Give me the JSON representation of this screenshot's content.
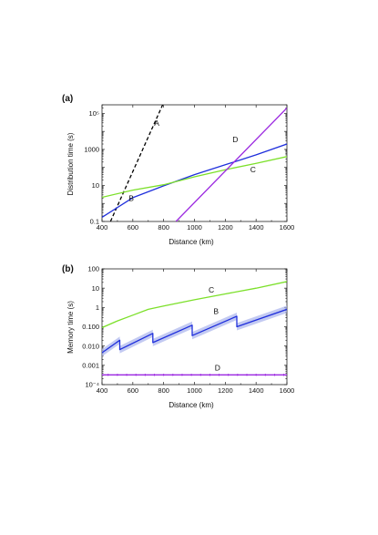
{
  "chart_data": [
    {
      "panel": "(a)",
      "type": "line",
      "xlabel": "Distance (km)",
      "ylabel": "Distribution time (s)",
      "xlim": [
        400,
        1600
      ],
      "ylim": [
        0.1,
        300000
      ],
      "yscale": "log",
      "xticks": [
        400,
        600,
        800,
        1000,
        1200,
        1400,
        1600
      ],
      "yticks": [
        {
          "value": 0.1,
          "label": "0.1"
        },
        {
          "value": 10,
          "label": "10"
        },
        {
          "value": 1000,
          "label": "1000"
        },
        {
          "value": 100000,
          "label": "10⁵"
        }
      ],
      "series": [
        {
          "name": "A",
          "color": "#000000",
          "dashed": true,
          "x": [
            455,
            800
          ],
          "y": [
            0.1,
            400000
          ],
          "label_at": {
            "x": 755,
            "y": 20000
          }
        },
        {
          "name": "B",
          "color": "#1f2fdc",
          "x": [
            400,
            600,
            800,
            1000,
            1200,
            1400,
            1600
          ],
          "y": [
            0.17,
            2.1,
            9.5,
            40,
            140,
            500,
            2000
          ],
          "label_at": {
            "x": 590,
            "y": 1.4
          }
        },
        {
          "name": "C",
          "color": "#7ce02a",
          "x": [
            400,
            600,
            800,
            1000,
            1200,
            1400,
            1600
          ],
          "y": [
            2.2,
            5.5,
            11,
            30,
            75,
            170,
            400
          ],
          "label_at": {
            "x": 1380,
            "y": 55
          }
        },
        {
          "name": "D",
          "color": "#9b28e0",
          "x": [
            880,
            1600
          ],
          "y": [
            0.1,
            200000
          ],
          "label_at": {
            "x": 1265,
            "y": 2500
          }
        }
      ]
    },
    {
      "panel": "(b)",
      "type": "line",
      "xlabel": "Distance (km)",
      "ylabel": "Memory time (s)",
      "xlim": [
        400,
        1600
      ],
      "ylim": [
        0.0001,
        100
      ],
      "yscale": "log",
      "xticks": [
        400,
        600,
        800,
        1000,
        1200,
        1400,
        1600
      ],
      "yticks": [
        {
          "value": 100,
          "label": "100"
        },
        {
          "value": 10,
          "label": "10"
        },
        {
          "value": 1,
          "label": "1"
        },
        {
          "value": 0.1,
          "label": "0.100"
        },
        {
          "value": 0.01,
          "label": "0.010"
        },
        {
          "value": 0.001,
          "label": "0.001"
        },
        {
          "value": 0.0001,
          "label": "10⁻⁴"
        }
      ],
      "series": [
        {
          "name": "C",
          "color": "#7ce02a",
          "x": [
            400,
            500,
            600,
            700,
            800,
            1000,
            1200,
            1400,
            1600
          ],
          "y": [
            0.09,
            0.2,
            0.4,
            0.8,
            1.2,
            2.5,
            5.0,
            10,
            22
          ],
          "label_at": {
            "x": 1110,
            "y": 6
          }
        },
        {
          "name": "B",
          "color": "#1f2fdc",
          "band_color": "#aab4ec",
          "x": [
            400,
            515,
            515,
            730,
            730,
            985,
            985,
            1275,
            1275,
            1600
          ],
          "y": [
            0.0045,
            0.02,
            0.0065,
            0.045,
            0.015,
            0.12,
            0.035,
            0.35,
            0.1,
            0.8
          ],
          "label_at": {
            "x": 1140,
            "y": 0.45
          }
        },
        {
          "name": "D",
          "color": "#9b28e0",
          "x": [
            400,
            1600
          ],
          "y": [
            0.00032,
            0.00032
          ],
          "label_at": {
            "x": 1150,
            "y": 0.00055
          }
        }
      ]
    }
  ]
}
